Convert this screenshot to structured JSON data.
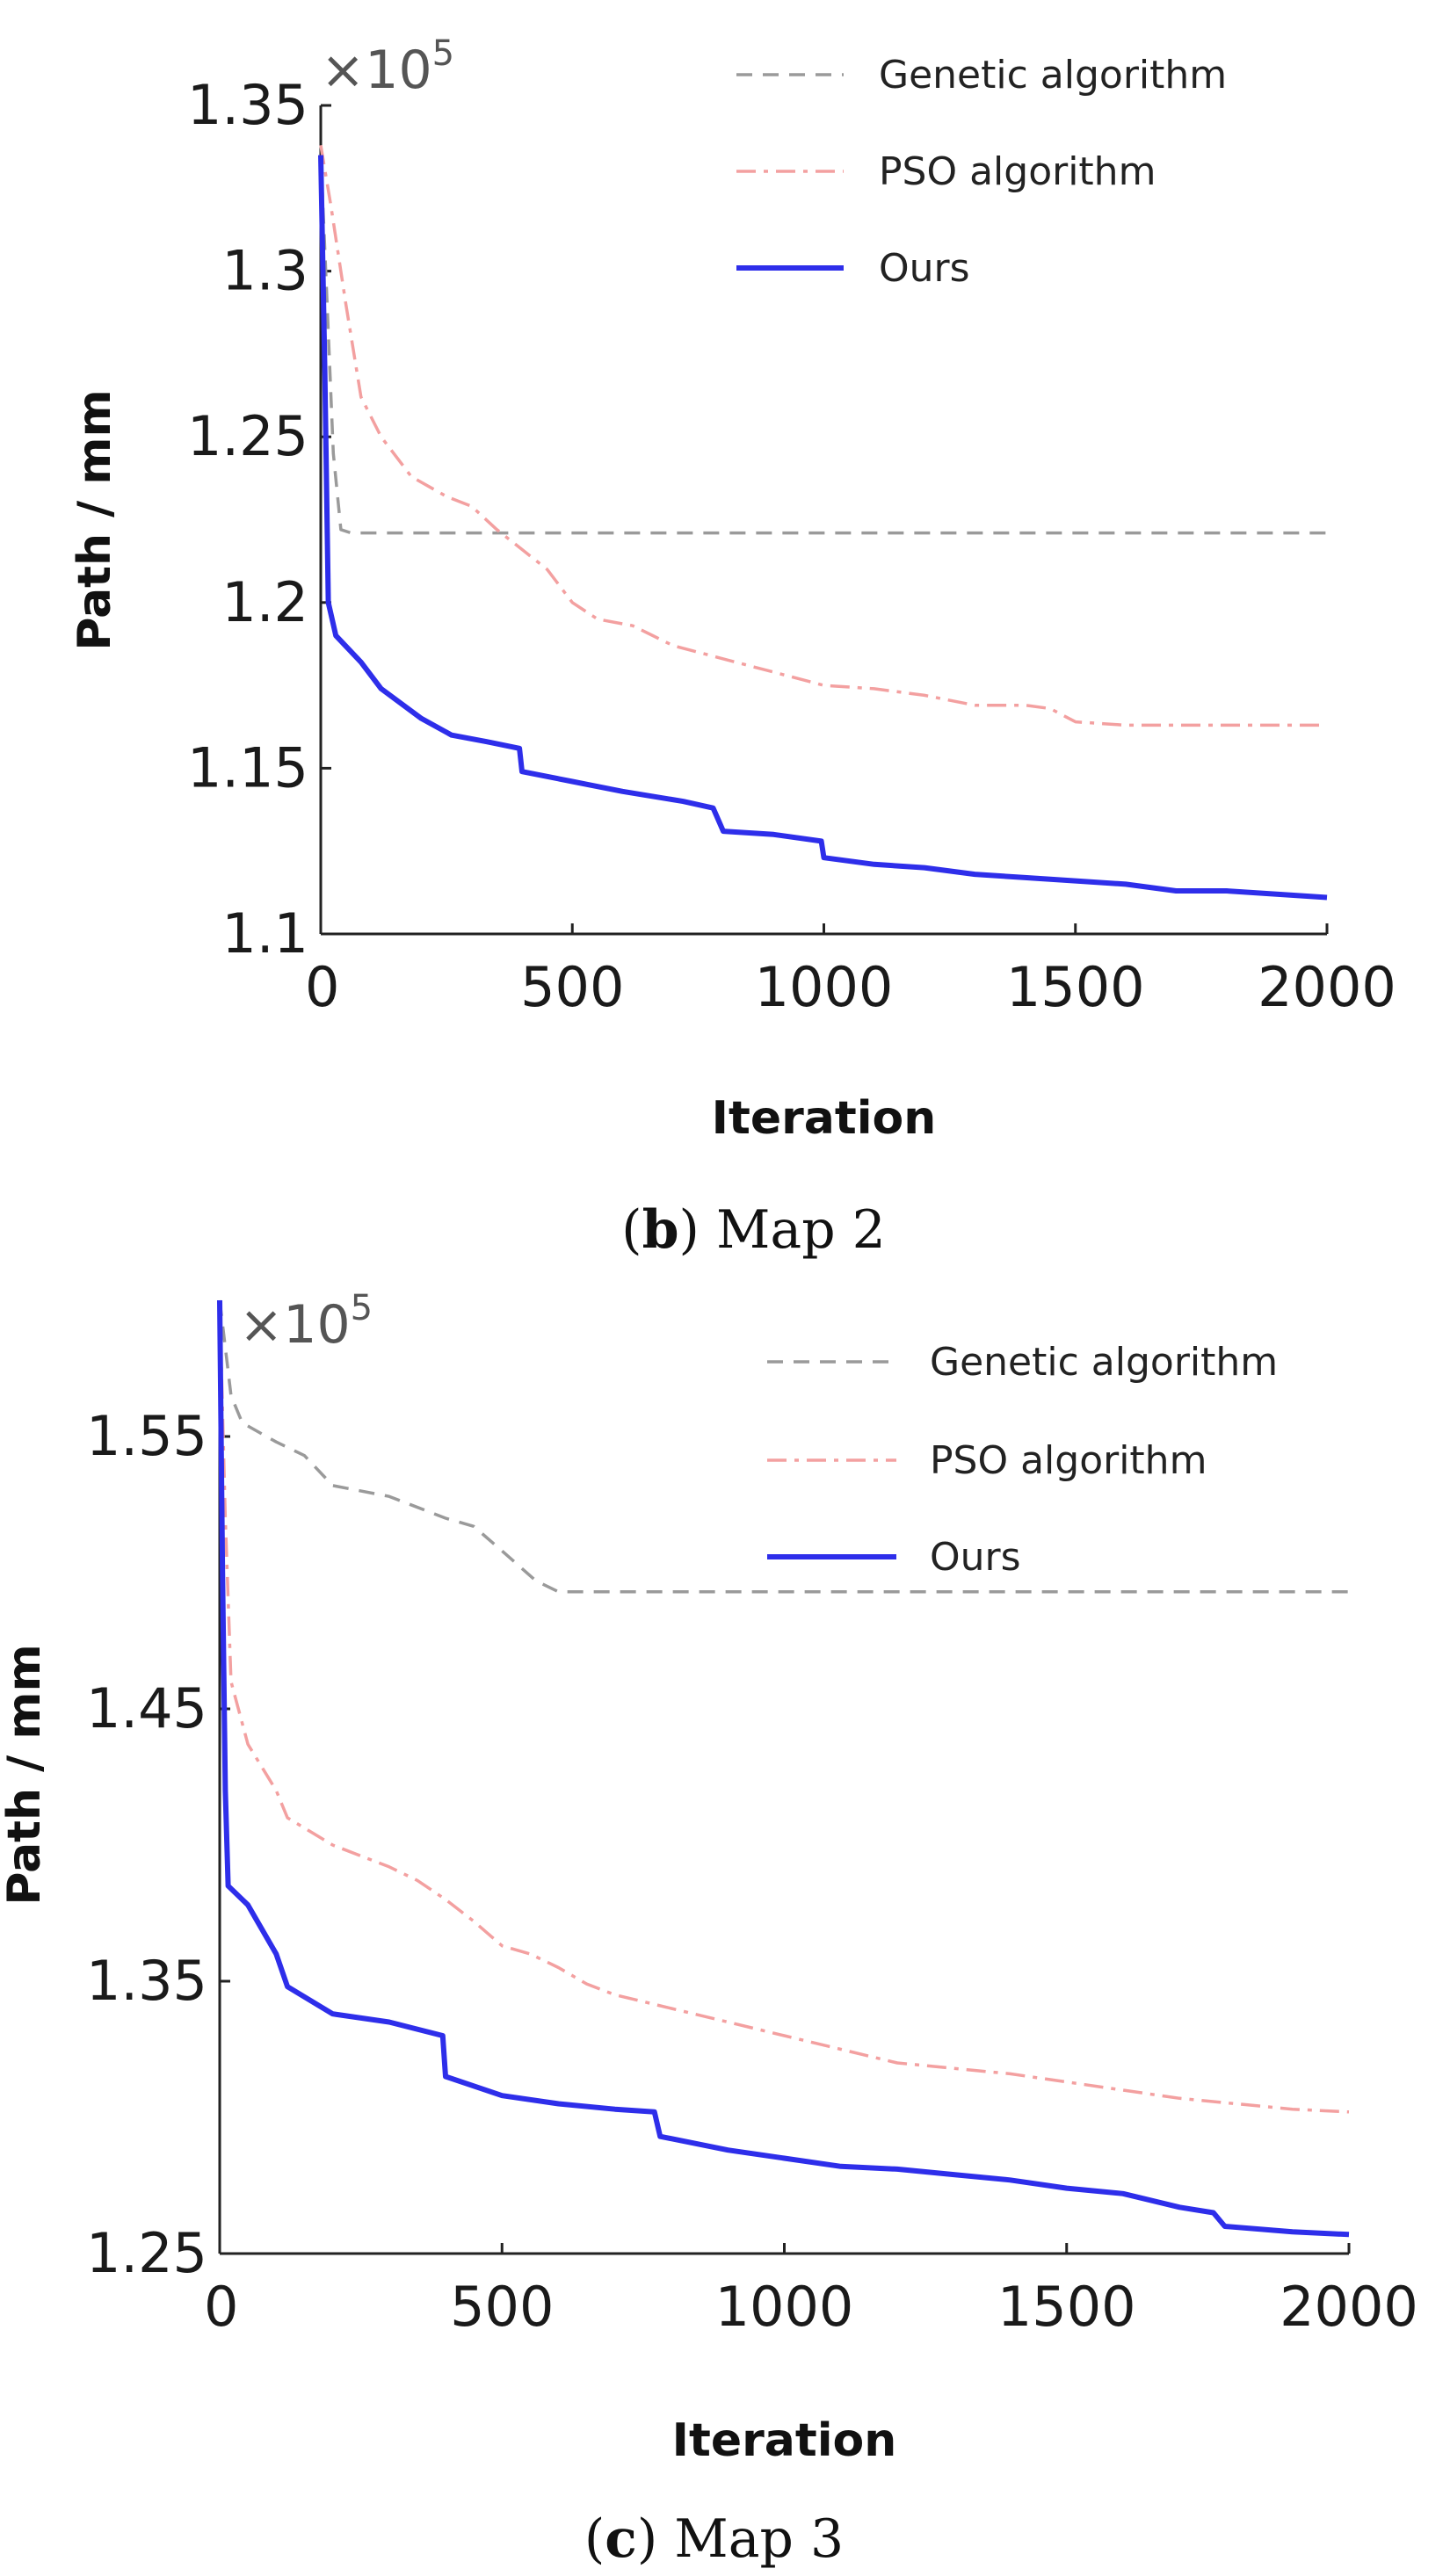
{
  "chart_data": [
    {
      "type": "line",
      "caption_letter": "b",
      "caption_text": "Map 2",
      "xlabel": "Iteration",
      "ylabel": "Path / mm",
      "scale_base": "×10",
      "scale_exponent": "5",
      "xlim": [
        0,
        2000
      ],
      "ylim": [
        1.1,
        1.35
      ],
      "xticks": [
        0,
        500,
        1000,
        1500,
        2000
      ],
      "xtick_labels": [
        "0",
        "500",
        "1000",
        "1500",
        "2000"
      ],
      "yticks": [
        1.1,
        1.15,
        1.2,
        1.25,
        1.3,
        1.35
      ],
      "ytick_labels": [
        "1.1",
        "1.15",
        "1.2",
        "1.25",
        "1.3",
        "1.35"
      ],
      "legend": [
        "Genetic algorithm",
        "PSO algorithm",
        "Ours"
      ],
      "series": [
        {
          "name": "Genetic algorithm",
          "color": "#9a9a9a",
          "style": "dashed",
          "points": [
            [
              0,
              1.335
            ],
            [
              10,
              1.3
            ],
            [
              25,
              1.245
            ],
            [
              40,
              1.222
            ],
            [
              60,
              1.221
            ],
            [
              200,
              1.221
            ],
            [
              1000,
              1.221
            ],
            [
              2000,
              1.221
            ]
          ]
        },
        {
          "name": "PSO algorithm",
          "color": "#f3a0a0",
          "style": "dashdot",
          "points": [
            [
              0,
              1.338
            ],
            [
              20,
              1.32
            ],
            [
              50,
              1.29
            ],
            [
              80,
              1.262
            ],
            [
              120,
              1.25
            ],
            [
              180,
              1.238
            ],
            [
              250,
              1.232
            ],
            [
              300,
              1.229
            ],
            [
              350,
              1.222
            ],
            [
              400,
              1.216
            ],
            [
              450,
              1.21
            ],
            [
              500,
              1.2
            ],
            [
              550,
              1.195
            ],
            [
              620,
              1.193
            ],
            [
              660,
              1.19
            ],
            [
              700,
              1.187
            ],
            [
              800,
              1.183
            ],
            [
              900,
              1.179
            ],
            [
              1000,
              1.175
            ],
            [
              1100,
              1.174
            ],
            [
              1200,
              1.172
            ],
            [
              1300,
              1.169
            ],
            [
              1400,
              1.169
            ],
            [
              1450,
              1.168
            ],
            [
              1500,
              1.164
            ],
            [
              1600,
              1.163
            ],
            [
              1700,
              1.163
            ],
            [
              2000,
              1.163
            ]
          ]
        },
        {
          "name": "Ours",
          "color": "#2e2eea",
          "style": "solid",
          "points": [
            [
              0,
              1.335
            ],
            [
              8,
              1.27
            ],
            [
              15,
              1.2
            ],
            [
              30,
              1.19
            ],
            [
              80,
              1.182
            ],
            [
              120,
              1.174
            ],
            [
              200,
              1.165
            ],
            [
              260,
              1.16
            ],
            [
              330,
              1.158
            ],
            [
              395,
              1.156
            ],
            [
              400,
              1.149
            ],
            [
              500,
              1.146
            ],
            [
              600,
              1.143
            ],
            [
              720,
              1.14
            ],
            [
              780,
              1.138
            ],
            [
              800,
              1.131
            ],
            [
              900,
              1.13
            ],
            [
              995,
              1.128
            ],
            [
              1000,
              1.123
            ],
            [
              1100,
              1.121
            ],
            [
              1200,
              1.12
            ],
            [
              1300,
              1.118
            ],
            [
              1400,
              1.117
            ],
            [
              1500,
              1.116
            ],
            [
              1600,
              1.115
            ],
            [
              1700,
              1.113
            ],
            [
              1800,
              1.113
            ],
            [
              1900,
              1.112
            ],
            [
              2000,
              1.111
            ]
          ]
        }
      ]
    },
    {
      "type": "line",
      "caption_letter": "c",
      "caption_text": "Map 3",
      "xlabel": "Iteration",
      "ylabel": "Path / mm",
      "scale_base": "×10",
      "scale_exponent": "5",
      "xlim": [
        0,
        2000
      ],
      "ylim": [
        1.25,
        1.6
      ],
      "xticks": [
        0,
        500,
        1000,
        1500,
        2000
      ],
      "xtick_labels": [
        "0",
        "500",
        "1000",
        "1500",
        "2000"
      ],
      "yticks": [
        1.25,
        1.35,
        1.45,
        1.55
      ],
      "ytick_labels": [
        "1.25",
        "1.35",
        "1.45",
        "1.55"
      ],
      "legend": [
        "Genetic algorithm",
        "PSO algorithm",
        "Ours"
      ],
      "series": [
        {
          "name": "Genetic algorithm",
          "color": "#9a9a9a",
          "style": "dashed",
          "points": [
            [
              0,
              1.6
            ],
            [
              20,
              1.565
            ],
            [
              40,
              1.555
            ],
            [
              100,
              1.548
            ],
            [
              150,
              1.543
            ],
            [
              200,
              1.532
            ],
            [
              300,
              1.528
            ],
            [
              400,
              1.52
            ],
            [
              450,
              1.517
            ],
            [
              500,
              1.508
            ],
            [
              560,
              1.497
            ],
            [
              600,
              1.493
            ],
            [
              700,
              1.493
            ],
            [
              1000,
              1.493
            ],
            [
              2000,
              1.493
            ]
          ]
        },
        {
          "name": "PSO algorithm",
          "color": "#f3a0a0",
          "style": "dashdot",
          "points": [
            [
              0,
              1.6
            ],
            [
              10,
              1.52
            ],
            [
              20,
              1.46
            ],
            [
              50,
              1.437
            ],
            [
              100,
              1.42
            ],
            [
              120,
              1.41
            ],
            [
              200,
              1.4
            ],
            [
              300,
              1.392
            ],
            [
              350,
              1.387
            ],
            [
              400,
              1.38
            ],
            [
              450,
              1.372
            ],
            [
              500,
              1.363
            ],
            [
              550,
              1.36
            ],
            [
              600,
              1.355
            ],
            [
              650,
              1.349
            ],
            [
              700,
              1.345
            ],
            [
              800,
              1.34
            ],
            [
              900,
              1.335
            ],
            [
              1000,
              1.33
            ],
            [
              1100,
              1.325
            ],
            [
              1200,
              1.32
            ],
            [
              1300,
              1.318
            ],
            [
              1400,
              1.316
            ],
            [
              1500,
              1.313
            ],
            [
              1600,
              1.31
            ],
            [
              1700,
              1.307
            ],
            [
              1800,
              1.305
            ],
            [
              1900,
              1.303
            ],
            [
              2000,
              1.302
            ]
          ]
        },
        {
          "name": "Ours",
          "color": "#2e2eea",
          "style": "solid",
          "points": [
            [
              0,
              1.6
            ],
            [
              5,
              1.5
            ],
            [
              10,
              1.42
            ],
            [
              15,
              1.385
            ],
            [
              50,
              1.378
            ],
            [
              100,
              1.36
            ],
            [
              120,
              1.348
            ],
            [
              200,
              1.338
            ],
            [
              300,
              1.335
            ],
            [
              395,
              1.33
            ],
            [
              400,
              1.315
            ],
            [
              500,
              1.308
            ],
            [
              600,
              1.305
            ],
            [
              700,
              1.303
            ],
            [
              770,
              1.302
            ],
            [
              780,
              1.293
            ],
            [
              900,
              1.288
            ],
            [
              1000,
              1.285
            ],
            [
              1100,
              1.282
            ],
            [
              1200,
              1.281
            ],
            [
              1300,
              1.279
            ],
            [
              1400,
              1.277
            ],
            [
              1500,
              1.274
            ],
            [
              1600,
              1.272
            ],
            [
              1700,
              1.267
            ],
            [
              1760,
              1.265
            ],
            [
              1780,
              1.26
            ],
            [
              1900,
              1.258
            ],
            [
              2000,
              1.257
            ]
          ]
        }
      ]
    }
  ]
}
